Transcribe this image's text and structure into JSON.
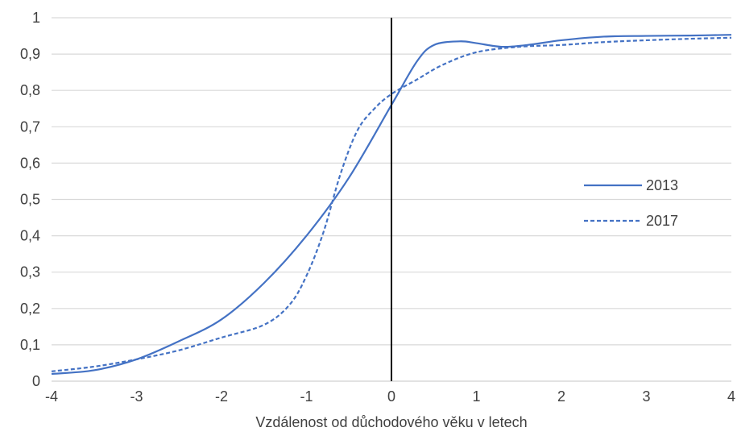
{
  "chart_data": {
    "type": "line",
    "title": "",
    "xlabel": "Vzdálenost od důchodového věku v letech",
    "ylabel": "",
    "xlim": [
      -4,
      4
    ],
    "ylim": [
      0,
      1
    ],
    "x_ticks": [
      -4,
      -3,
      -2,
      -1,
      0,
      1,
      2,
      3,
      4
    ],
    "x_tick_labels": [
      "-4",
      "-3",
      "-2",
      "-1",
      "0",
      "1",
      "2",
      "3",
      "4"
    ],
    "y_ticks": [
      0,
      0.1,
      0.2,
      0.3,
      0.4,
      0.5,
      0.6,
      0.7,
      0.8,
      0.9,
      1
    ],
    "y_tick_labels": [
      "0",
      "0,1",
      "0,2",
      "0,3",
      "0,4",
      "0,5",
      "0,6",
      "0,7",
      "0,8",
      "0,9",
      "1"
    ],
    "grid": "horizontal",
    "vertical_reference_line_x": 0,
    "legend_position": "right",
    "series": [
      {
        "name": "2013",
        "line_style": "solid",
        "color": "#4472C4",
        "x": [
          -4,
          -3.5,
          -3,
          -2.5,
          -2,
          -1.5,
          -1,
          -0.5,
          0,
          0.3,
          0.5,
          0.8,
          1,
          1.3,
          1.6,
          2,
          2.5,
          3,
          3.5,
          4
        ],
        "y": [
          0.02,
          0.03,
          0.06,
          0.11,
          0.17,
          0.27,
          0.4,
          0.56,
          0.76,
          0.88,
          0.925,
          0.935,
          0.93,
          0.92,
          0.925,
          0.938,
          0.948,
          0.95,
          0.951,
          0.953
        ]
      },
      {
        "name": "2017",
        "line_style": "dashed",
        "color": "#4472C4",
        "x": [
          -4,
          -3.5,
          -3,
          -2.5,
          -2,
          -1.5,
          -1.2,
          -1,
          -0.8,
          -0.6,
          -0.4,
          -0.2,
          0,
          0.3,
          0.6,
          1,
          1.5,
          2,
          2.5,
          3,
          3.5,
          4
        ],
        "y": [
          0.027,
          0.04,
          0.06,
          0.085,
          0.12,
          0.155,
          0.21,
          0.29,
          0.41,
          0.57,
          0.69,
          0.75,
          0.79,
          0.83,
          0.87,
          0.905,
          0.92,
          0.925,
          0.933,
          0.938,
          0.942,
          0.945
        ]
      }
    ]
  }
}
